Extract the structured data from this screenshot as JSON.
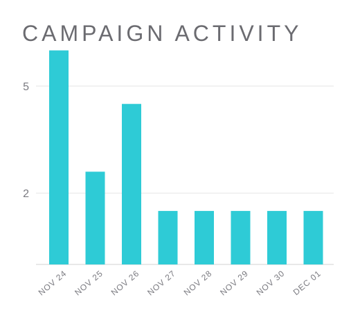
{
  "title": "CAMPAIGN ACTIVITY",
  "colors": {
    "bar": "#2ecbd6",
    "grid": "#e6e6e6",
    "axis": "#d0d0d0",
    "text": "#6b6b70"
  },
  "chart_data": {
    "type": "bar",
    "title": "CAMPAIGN ACTIVITY",
    "categories": [
      "NOV 24",
      "NOV 25",
      "NOV 26",
      "NOV 27",
      "NOV 28",
      "NOV 29",
      "NOV 30",
      "DEC 01"
    ],
    "values": [
      6,
      2.6,
      4.5,
      1.5,
      1.5,
      1.5,
      1.5,
      1.5
    ],
    "ylim": [
      0,
      6
    ],
    "yticks": [
      2,
      5
    ],
    "grid": true
  }
}
